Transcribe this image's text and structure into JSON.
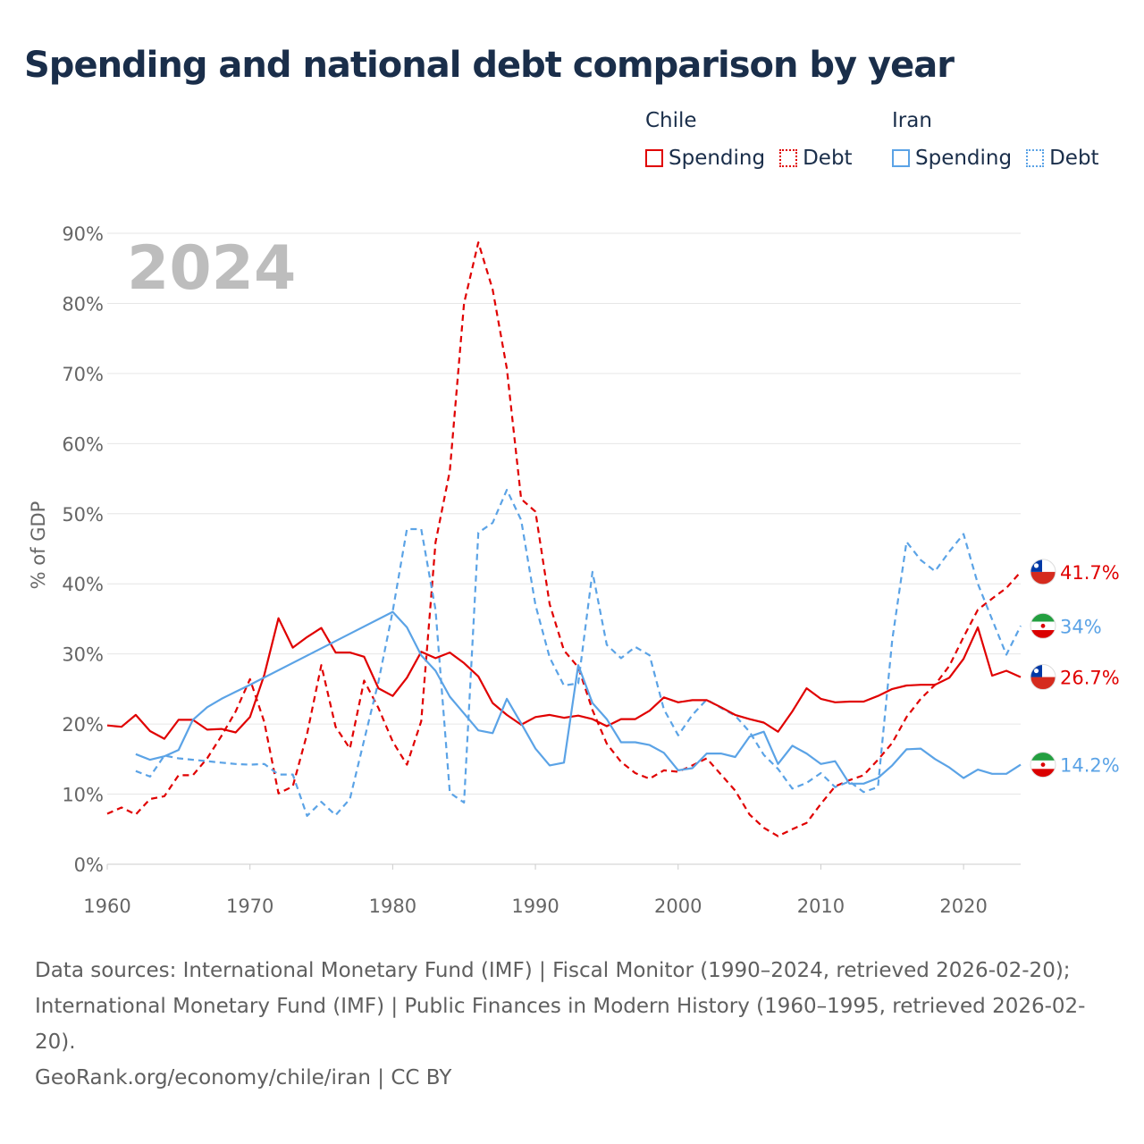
{
  "title": "Spending and national debt comparison by year",
  "legend": {
    "groups": [
      {
        "name": "Chile",
        "spending_label": "Spending",
        "debt_label": "Debt",
        "color": "#e00000"
      },
      {
        "name": "Iran",
        "spending_label": "Spending",
        "debt_label": "Debt",
        "color": "#5ba3e6"
      }
    ]
  },
  "footer": {
    "sources": "Data sources: International Monetary Fund (IMF) | Fiscal Monitor (1990–2024, retrieved 2026-02-20); International Monetary Fund (IMF) | Public Finances in Modern History (1960–1995, retrieved 2026-02-20).",
    "credit": "GeoRank.org/economy/chile/iran | CC BY"
  },
  "chart_data": {
    "type": "line",
    "year_label": "2024",
    "ylabel": "% of GDP",
    "xlim": [
      1960,
      2024
    ],
    "ylim": [
      0,
      90
    ],
    "x_ticks": [
      1960,
      1970,
      1980,
      1990,
      2000,
      2010,
      2020
    ],
    "y_ticks": [
      0,
      10,
      20,
      30,
      40,
      50,
      60,
      70,
      80,
      90
    ],
    "y_tick_labels": [
      "0%",
      "10%",
      "20%",
      "30%",
      "40%",
      "50%",
      "60%",
      "70%",
      "80%",
      "90%"
    ],
    "series": [
      {
        "name": "Chile Spending",
        "country": "Chile",
        "style": "solid",
        "color": "#e00000",
        "end_label": "26.7%",
        "points": [
          [
            1960,
            19.8
          ],
          [
            1961,
            19.6
          ],
          [
            1962,
            21.3
          ],
          [
            1963,
            19.0
          ],
          [
            1964,
            17.9
          ],
          [
            1965,
            20.6
          ],
          [
            1966,
            20.6
          ],
          [
            1967,
            19.2
          ],
          [
            1968,
            19.3
          ],
          [
            1969,
            18.8
          ],
          [
            1970,
            21.0
          ],
          [
            1971,
            27.0
          ],
          [
            1972,
            35.1
          ],
          [
            1973,
            30.9
          ],
          [
            1974,
            32.4
          ],
          [
            1975,
            33.7
          ],
          [
            1976,
            30.2
          ],
          [
            1977,
            30.2
          ],
          [
            1978,
            29.6
          ],
          [
            1979,
            25.1
          ],
          [
            1980,
            24.0
          ],
          [
            1981,
            26.6
          ],
          [
            1982,
            30.3
          ],
          [
            1983,
            29.4
          ],
          [
            1984,
            30.2
          ],
          [
            1985,
            28.7
          ],
          [
            1986,
            26.8
          ],
          [
            1987,
            23.0
          ],
          [
            1988,
            21.3
          ],
          [
            1989,
            19.9
          ],
          [
            1990,
            21.0
          ],
          [
            1991,
            21.3
          ],
          [
            1992,
            20.9
          ],
          [
            1993,
            21.2
          ],
          [
            1994,
            20.7
          ],
          [
            1995,
            19.7
          ],
          [
            1996,
            20.7
          ],
          [
            1997,
            20.7
          ],
          [
            1998,
            21.9
          ],
          [
            1999,
            23.8
          ],
          [
            2000,
            23.1
          ],
          [
            2001,
            23.4
          ],
          [
            2002,
            23.4
          ],
          [
            2003,
            22.4
          ],
          [
            2004,
            21.3
          ],
          [
            2005,
            20.7
          ],
          [
            2006,
            20.2
          ],
          [
            2007,
            18.9
          ],
          [
            2008,
            21.8
          ],
          [
            2009,
            25.1
          ],
          [
            2010,
            23.6
          ],
          [
            2011,
            23.1
          ],
          [
            2012,
            23.2
          ],
          [
            2013,
            23.2
          ],
          [
            2014,
            24.0
          ],
          [
            2015,
            25.0
          ],
          [
            2016,
            25.5
          ],
          [
            2017,
            25.6
          ],
          [
            2018,
            25.6
          ],
          [
            2019,
            26.6
          ],
          [
            2020,
            29.3
          ],
          [
            2021,
            33.8
          ],
          [
            2022,
            26.9
          ],
          [
            2023,
            27.6
          ],
          [
            2024,
            26.7
          ]
        ]
      },
      {
        "name": "Chile Debt",
        "country": "Chile",
        "style": "dashed",
        "color": "#e00000",
        "end_label": "41.7%",
        "points": [
          [
            1960,
            7.2
          ],
          [
            1961,
            8.1
          ],
          [
            1962,
            7.1
          ],
          [
            1963,
            9.3
          ],
          [
            1964,
            9.7
          ],
          [
            1965,
            12.7
          ],
          [
            1966,
            12.7
          ],
          [
            1967,
            15.1
          ],
          [
            1968,
            18.3
          ],
          [
            1969,
            21.8
          ],
          [
            1970,
            26.4
          ],
          [
            1971,
            20.3
          ],
          [
            1972,
            10.1
          ],
          [
            1973,
            11.1
          ],
          [
            1974,
            18.6
          ],
          [
            1975,
            28.4
          ],
          [
            1976,
            19.6
          ],
          [
            1977,
            16.5
          ],
          [
            1978,
            26.2
          ],
          [
            1979,
            22.3
          ],
          [
            1980,
            17.5
          ],
          [
            1981,
            14.2
          ],
          [
            1982,
            20.4
          ],
          [
            1983,
            45.9
          ],
          [
            1984,
            56.1
          ],
          [
            1985,
            80.0
          ],
          [
            1986,
            88.7
          ],
          [
            1987,
            82.0
          ],
          [
            1988,
            70.7
          ],
          [
            1989,
            52.1
          ],
          [
            1990,
            50.3
          ],
          [
            1991,
            37.1
          ],
          [
            1992,
            30.5
          ],
          [
            1993,
            28.1
          ],
          [
            1994,
            22.0
          ],
          [
            1995,
            17.2
          ],
          [
            1996,
            14.6
          ],
          [
            1997,
            13.0
          ],
          [
            1998,
            12.2
          ],
          [
            1999,
            13.4
          ],
          [
            2000,
            13.2
          ],
          [
            2001,
            14.1
          ],
          [
            2002,
            15.1
          ],
          [
            2003,
            12.8
          ],
          [
            2004,
            10.5
          ],
          [
            2005,
            7.1
          ],
          [
            2006,
            5.2
          ],
          [
            2007,
            4.0
          ],
          [
            2008,
            5.0
          ],
          [
            2009,
            5.9
          ],
          [
            2010,
            8.6
          ],
          [
            2011,
            11.1
          ],
          [
            2012,
            12.0
          ],
          [
            2013,
            12.7
          ],
          [
            2014,
            14.9
          ],
          [
            2015,
            17.3
          ],
          [
            2016,
            21.0
          ],
          [
            2017,
            23.6
          ],
          [
            2018,
            25.6
          ],
          [
            2019,
            28.3
          ],
          [
            2020,
            32.4
          ],
          [
            2021,
            36.3
          ],
          [
            2022,
            37.9
          ],
          [
            2023,
            39.4
          ],
          [
            2024,
            41.7
          ]
        ]
      },
      {
        "name": "Iran Spending",
        "country": "Iran",
        "style": "solid",
        "color": "#5ba3e6",
        "end_label": "14.2%",
        "points": [
          [
            1962,
            15.7
          ],
          [
            1963,
            14.9
          ],
          [
            1964,
            15.4
          ],
          [
            1965,
            16.3
          ],
          [
            1966,
            20.6
          ],
          [
            1967,
            22.4
          ],
          [
            1968,
            23.6
          ],
          [
            1969,
            24.6
          ],
          [
            1970,
            25.6
          ],
          [
            1980,
            36.0
          ],
          [
            1981,
            33.8
          ],
          [
            1982,
            29.8
          ],
          [
            1983,
            27.6
          ],
          [
            1984,
            23.9
          ],
          [
            1985,
            21.5
          ],
          [
            1986,
            19.1
          ],
          [
            1987,
            18.7
          ],
          [
            1988,
            23.6
          ],
          [
            1989,
            20.1
          ],
          [
            1990,
            16.5
          ],
          [
            1991,
            14.1
          ],
          [
            1992,
            14.5
          ],
          [
            1993,
            28.4
          ],
          [
            1994,
            23.0
          ],
          [
            1995,
            20.7
          ],
          [
            1996,
            17.4
          ],
          [
            1997,
            17.4
          ],
          [
            1998,
            17.0
          ],
          [
            1999,
            15.9
          ],
          [
            2000,
            13.4
          ],
          [
            2001,
            13.7
          ],
          [
            2002,
            15.8
          ],
          [
            2003,
            15.8
          ],
          [
            2004,
            15.3
          ],
          [
            2005,
            18.2
          ],
          [
            2006,
            18.9
          ],
          [
            2007,
            14.3
          ],
          [
            2008,
            16.9
          ],
          [
            2009,
            15.8
          ],
          [
            2010,
            14.3
          ],
          [
            2011,
            14.7
          ],
          [
            2012,
            11.5
          ],
          [
            2013,
            11.5
          ],
          [
            2014,
            12.3
          ],
          [
            2015,
            14.1
          ],
          [
            2016,
            16.4
          ],
          [
            2017,
            16.5
          ],
          [
            2018,
            15.0
          ],
          [
            2019,
            13.8
          ],
          [
            2020,
            12.3
          ],
          [
            2021,
            13.5
          ],
          [
            2022,
            12.9
          ],
          [
            2023,
            12.9
          ],
          [
            2024,
            14.2
          ]
        ]
      },
      {
        "name": "Iran Debt",
        "country": "Iran",
        "style": "dashed",
        "color": "#5ba3e6",
        "end_label": "34%",
        "points": [
          [
            1962,
            13.3
          ],
          [
            1963,
            12.5
          ],
          [
            1964,
            15.5
          ],
          [
            1965,
            15.1
          ],
          [
            1966,
            14.9
          ],
          [
            1967,
            14.7
          ],
          [
            1968,
            14.5
          ],
          [
            1969,
            14.3
          ],
          [
            1970,
            14.2
          ],
          [
            1971,
            14.3
          ],
          [
            1972,
            12.8
          ],
          [
            1973,
            12.8
          ],
          [
            1974,
            6.9
          ],
          [
            1975,
            8.9
          ],
          [
            1976,
            7.0
          ],
          [
            1977,
            9.3
          ],
          [
            1978,
            17.7
          ],
          [
            1979,
            26.0
          ],
          [
            1980,
            36.1
          ],
          [
            1981,
            47.8
          ],
          [
            1982,
            47.8
          ],
          [
            1983,
            36.3
          ],
          [
            1984,
            10.2
          ],
          [
            1985,
            8.8
          ],
          [
            1986,
            47.3
          ],
          [
            1987,
            48.7
          ],
          [
            1988,
            53.4
          ],
          [
            1989,
            49.1
          ],
          [
            1990,
            37.0
          ],
          [
            1991,
            29.5
          ],
          [
            1992,
            25.5
          ],
          [
            1993,
            25.8
          ],
          [
            1994,
            41.7
          ],
          [
            1995,
            31.3
          ],
          [
            1996,
            29.4
          ],
          [
            1997,
            31.0
          ],
          [
            1998,
            29.8
          ],
          [
            1999,
            22.1
          ],
          [
            2000,
            18.4
          ],
          [
            2001,
            21.3
          ],
          [
            2002,
            23.5
          ],
          [
            2003,
            22.3
          ],
          [
            2004,
            21.2
          ],
          [
            2005,
            18.9
          ],
          [
            2006,
            15.6
          ],
          [
            2007,
            13.6
          ],
          [
            2008,
            10.8
          ],
          [
            2009,
            11.6
          ],
          [
            2010,
            13.0
          ],
          [
            2011,
            11.0
          ],
          [
            2012,
            11.8
          ],
          [
            2013,
            10.3
          ],
          [
            2014,
            11.0
          ],
          [
            2015,
            32.0
          ],
          [
            2016,
            46.0
          ],
          [
            2017,
            43.4
          ],
          [
            2018,
            41.8
          ],
          [
            2019,
            44.6
          ],
          [
            2020,
            47.1
          ],
          [
            2021,
            40.0
          ],
          [
            2022,
            34.9
          ],
          [
            2023,
            29.9
          ],
          [
            2024,
            34.0
          ]
        ]
      }
    ]
  }
}
